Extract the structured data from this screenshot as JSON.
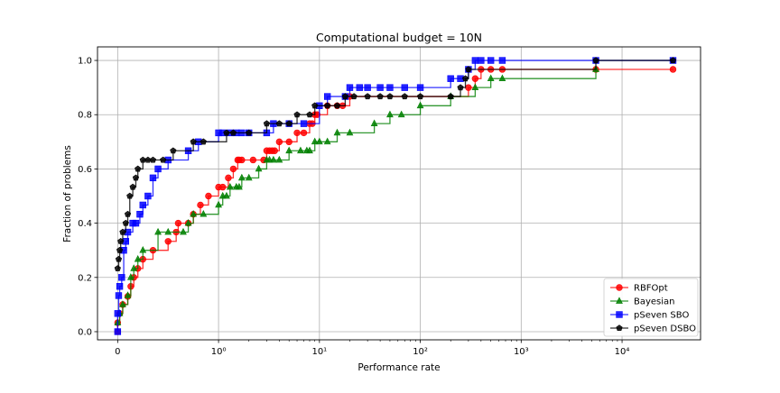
{
  "chart_data": {
    "type": "line",
    "title": "Computational budget = 10N",
    "xlabel": "Performance rate",
    "ylabel": "Fraction of problems",
    "x_scale": "symlog",
    "xlim": [
      -0.2,
      60000
    ],
    "ylim": [
      -0.03,
      1.05
    ],
    "x_ticks": [
      {
        "value": 0,
        "label": "0"
      },
      {
        "value": 1,
        "label": "10⁰"
      },
      {
        "value": 10,
        "label": "10¹"
      },
      {
        "value": 100,
        "label": "10²"
      },
      {
        "value": 1000,
        "label": "10³"
      },
      {
        "value": 10000,
        "label": "10⁴"
      }
    ],
    "y_ticks": [
      {
        "value": 0.0,
        "label": "0.0"
      },
      {
        "value": 0.2,
        "label": "0.2"
      },
      {
        "value": 0.4,
        "label": "0.4"
      },
      {
        "value": 0.6,
        "label": "0.6"
      },
      {
        "value": 0.8,
        "label": "0.8"
      },
      {
        "value": 1.0,
        "label": "1.0"
      }
    ],
    "grid": true,
    "legend_position": "bottom-right",
    "series": [
      {
        "name": "RBFOpt",
        "color": "#ff0000",
        "marker": "circle",
        "x": [
          0,
          0,
          0.02,
          0.05,
          0.1,
          0.13,
          0.16,
          0.2,
          0.25,
          0.35,
          0.5,
          0.58,
          0.6,
          0.7,
          0.75,
          0.82,
          0.9,
          1.0,
          1.1,
          1.25,
          1.4,
          1.55,
          1.6,
          1.7,
          2.2,
          2.8,
          3.0,
          3.2,
          3.4,
          3.6,
          4.0,
          5.0,
          6.0,
          7.0,
          8.0,
          8.5,
          9.0,
          9.5,
          12,
          15,
          17,
          20,
          300,
          350,
          400,
          500,
          650,
          5500,
          32000
        ],
        "y": [
          0.0,
          0.033,
          0.067,
          0.1,
          0.13,
          0.167,
          0.2,
          0.233,
          0.267,
          0.3,
          0.333,
          0.367,
          0.4,
          0.4,
          0.433,
          0.467,
          0.5,
          0.533,
          0.533,
          0.567,
          0.6,
          0.633,
          0.633,
          0.633,
          0.633,
          0.633,
          0.667,
          0.667,
          0.667,
          0.667,
          0.7,
          0.7,
          0.733,
          0.733,
          0.767,
          0.767,
          0.8,
          0.8,
          0.833,
          0.833,
          0.833,
          0.867,
          0.9,
          0.933,
          0.967,
          0.967,
          0.967,
          0.967,
          0.967
        ]
      },
      {
        "name": "Bayesian",
        "color": "#008000",
        "marker": "triangle",
        "x": [
          0,
          0.02,
          0.05,
          0.1,
          0.13,
          0.16,
          0.2,
          0.25,
          0.4,
          0.5,
          0.65,
          0.7,
          0.75,
          0.85,
          1.0,
          1.1,
          1.2,
          1.3,
          1.5,
          1.6,
          1.7,
          2.0,
          2.5,
          3.0,
          3.2,
          3.5,
          4.0,
          5.0,
          6.5,
          7.5,
          8.0,
          9.0,
          10,
          12,
          15,
          20,
          35,
          50,
          65,
          100,
          200,
          350,
          500,
          650,
          5500
        ],
        "y": [
          0.033,
          0.067,
          0.1,
          0.133,
          0.2,
          0.233,
          0.267,
          0.3,
          0.367,
          0.367,
          0.367,
          0.4,
          0.433,
          0.433,
          0.467,
          0.5,
          0.5,
          0.533,
          0.533,
          0.533,
          0.567,
          0.567,
          0.6,
          0.633,
          0.633,
          0.633,
          0.633,
          0.667,
          0.667,
          0.667,
          0.667,
          0.7,
          0.7,
          0.7,
          0.733,
          0.733,
          0.767,
          0.8,
          0.8,
          0.833,
          0.867,
          0.9,
          0.933,
          0.933,
          0.967
        ]
      },
      {
        "name": "pSeven SBO",
        "color": "#0000ff",
        "marker": "square",
        "x": [
          0,
          0,
          0.01,
          0.02,
          0.04,
          0.06,
          0.08,
          0.1,
          0.15,
          0.18,
          0.22,
          0.25,
          0.3,
          0.35,
          0.4,
          0.5,
          0.7,
          0.8,
          1.0,
          1.1,
          1.3,
          1.5,
          1.7,
          2.0,
          3.0,
          3.5,
          5.0,
          7.0,
          10,
          12,
          18,
          20,
          25,
          30,
          40,
          50,
          70,
          100,
          200,
          250,
          300,
          350,
          400,
          500,
          650,
          5500,
          32000
        ],
        "y": [
          0.0,
          0.067,
          0.133,
          0.167,
          0.2,
          0.3,
          0.333,
          0.367,
          0.4,
          0.4,
          0.433,
          0.467,
          0.5,
          0.567,
          0.6,
          0.633,
          0.667,
          0.7,
          0.733,
          0.733,
          0.733,
          0.733,
          0.733,
          0.733,
          0.733,
          0.767,
          0.767,
          0.767,
          0.833,
          0.867,
          0.867,
          0.9,
          0.9,
          0.9,
          0.9,
          0.9,
          0.9,
          0.9,
          0.933,
          0.933,
          0.967,
          1.0,
          1.0,
          1.0,
          1.0,
          1.0,
          1.0
        ]
      },
      {
        "name": "pSeven DSBO",
        "color": "#000000",
        "marker": "pentagon",
        "x": [
          0,
          0.01,
          0.02,
          0.03,
          0.05,
          0.08,
          0.1,
          0.12,
          0.15,
          0.18,
          0.2,
          0.25,
          0.3,
          0.35,
          0.45,
          0.55,
          0.75,
          0.85,
          1.2,
          1.4,
          2.0,
          3.0,
          4.0,
          5.0,
          6.0,
          8.0,
          9.0,
          12,
          15,
          18,
          22,
          30,
          40,
          50,
          70,
          100,
          200,
          250,
          280,
          300,
          5500,
          32000
        ],
        "y": [
          0.233,
          0.267,
          0.3,
          0.333,
          0.367,
          0.4,
          0.433,
          0.5,
          0.533,
          0.567,
          0.6,
          0.633,
          0.633,
          0.633,
          0.633,
          0.667,
          0.7,
          0.7,
          0.733,
          0.733,
          0.733,
          0.767,
          0.767,
          0.767,
          0.8,
          0.8,
          0.833,
          0.833,
          0.833,
          0.867,
          0.867,
          0.867,
          0.867,
          0.867,
          0.867,
          0.867,
          0.867,
          0.9,
          0.933,
          0.967,
          1.0,
          1.0
        ]
      }
    ]
  }
}
